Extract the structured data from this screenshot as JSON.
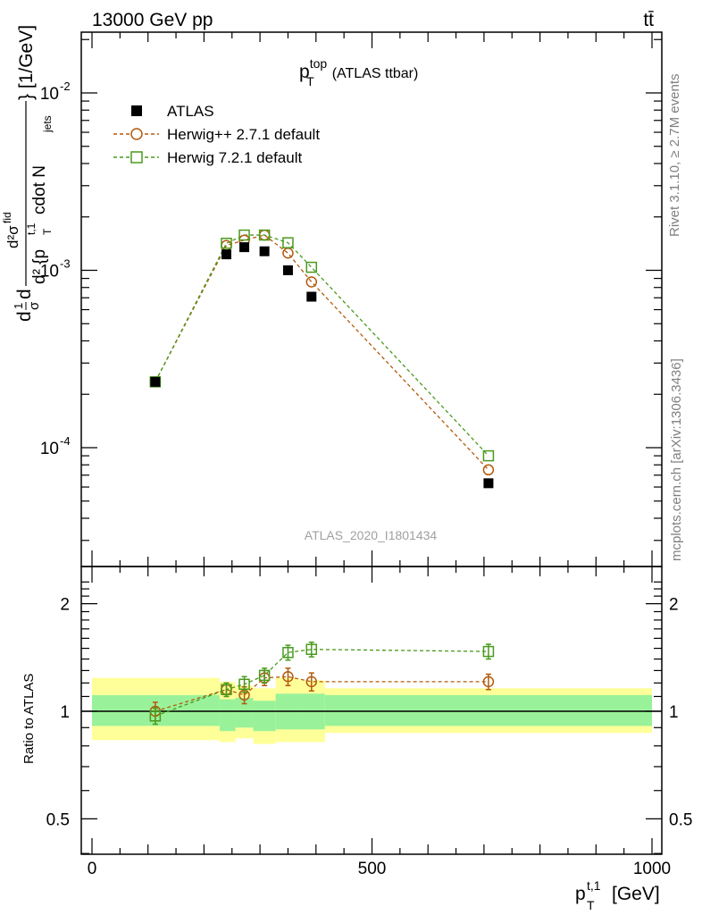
{
  "header": {
    "left": "13000 GeV pp",
    "right": "tt̄"
  },
  "side_labels": {
    "rivet": "Rivet 3.1.10, ≥ 2.7M events",
    "mcplots": "mcplots.cern.ch [arXiv:1306.3436]"
  },
  "analysis_id": "ATLAS_2020_I1801434",
  "main_title": {
    "p": "p",
    "sup": "top",
    "sub": "T",
    "rest": "(ATLAS ttbar)"
  },
  "y_axis_label": {
    "d1": "d",
    "frac1_num": "1",
    "frac1_den": "σ",
    "d2": "d",
    "frac2_num": "d²σ",
    "frac2_num_sup": "fid",
    "frac2_den_a": "d² {p",
    "frac2_den_sup": "t,1",
    "frac2_den_sub": "T",
    "frac2_den_b": "cdot N",
    "frac2_den_sub2": "jets",
    "frac2_den_c": "} [1/GeV]"
  },
  "ratio_y_label": "Ratio to ATLAS",
  "x_axis_label": {
    "p": "p",
    "sup": "t,1",
    "sub": "T",
    "unit": "[GeV]"
  },
  "top_ticks": {
    "labels": [
      "10",
      "10",
      "10"
    ],
    "exps": [
      "-2",
      "-3",
      "-4"
    ],
    "values": [
      0.01,
      0.001,
      0.0001
    ]
  },
  "ratio_ticks": {
    "labels": [
      "2",
      "1",
      "0.5"
    ],
    "values": [
      2,
      1,
      0.5
    ]
  },
  "x_ticks": {
    "labels": [
      "0",
      "500",
      "1000"
    ],
    "values": [
      0,
      500,
      1000
    ]
  },
  "legend": [
    {
      "label": "ATLAS",
      "marker": "filled-square"
    },
    {
      "label": "Herwig++ 2.7.1 default",
      "marker": "open-circle"
    },
    {
      "label": "Herwig 7.2.1 default",
      "marker": "open-square"
    }
  ],
  "colors": {
    "data": "#000000",
    "herwigpp": "#b35a0e",
    "herwig7": "#4a9a1e",
    "band_inner": "#99f299",
    "band_outer": "#ffff99"
  },
  "chart_data": {
    "type": "scatter",
    "scale": "log-y",
    "xlim": [
      -10,
      1000
    ],
    "ylim_main": [
      2.2e-05,
      0.022
    ],
    "ylim_ratio": [
      0.4,
      2.3
    ],
    "x": [
      113,
      240,
      272,
      308,
      350,
      392,
      708
    ],
    "series": [
      {
        "name": "ATLAS",
        "values": [
          0.000235,
          0.00123,
          0.00135,
          0.00128,
          0.001,
          0.00071,
          6.3e-05
        ]
      },
      {
        "name": "Herwig++ 2.7.1 default",
        "values": [
          0.000235,
          0.00138,
          0.00148,
          0.00158,
          0.00125,
          0.00086,
          7.5e-05
        ],
        "ratio": [
          1.0,
          1.15,
          1.11,
          1.24,
          1.25,
          1.21,
          1.21
        ],
        "ratio_err": [
          0.06,
          0.05,
          0.06,
          0.06,
          0.07,
          0.07,
          0.06
        ]
      },
      {
        "name": "Herwig 7.2.1 default",
        "values": [
          0.000235,
          0.00142,
          0.00158,
          0.00158,
          0.00143,
          0.00104,
          9e-05
        ],
        "ratio": [
          0.97,
          1.15,
          1.19,
          1.26,
          1.46,
          1.49,
          1.47
        ],
        "ratio_err": [
          0.05,
          0.05,
          0.06,
          0.06,
          0.07,
          0.07,
          0.07
        ]
      }
    ],
    "bands": [
      {
        "x0": 0,
        "x1": 228,
        "inner": [
          0.91,
          1.11
        ],
        "outer": [
          0.83,
          1.24
        ]
      },
      {
        "x0": 228,
        "x1": 256,
        "inner": [
          0.88,
          1.08
        ],
        "outer": [
          0.82,
          1.21
        ]
      },
      {
        "x0": 256,
        "x1": 288,
        "inner": [
          0.9,
          1.09
        ],
        "outer": [
          0.84,
          1.18
        ]
      },
      {
        "x0": 288,
        "x1": 328,
        "inner": [
          0.88,
          1.07
        ],
        "outer": [
          0.81,
          1.16
        ]
      },
      {
        "x0": 328,
        "x1": 370,
        "inner": [
          0.89,
          1.12
        ],
        "outer": [
          0.82,
          1.24
        ]
      },
      {
        "x0": 370,
        "x1": 416,
        "inner": [
          0.89,
          1.12
        ],
        "outer": [
          0.82,
          1.22
        ]
      },
      {
        "x0": 416,
        "x1": 1000,
        "inner": [
          0.91,
          1.11
        ],
        "outer": [
          0.87,
          1.16
        ]
      }
    ]
  }
}
